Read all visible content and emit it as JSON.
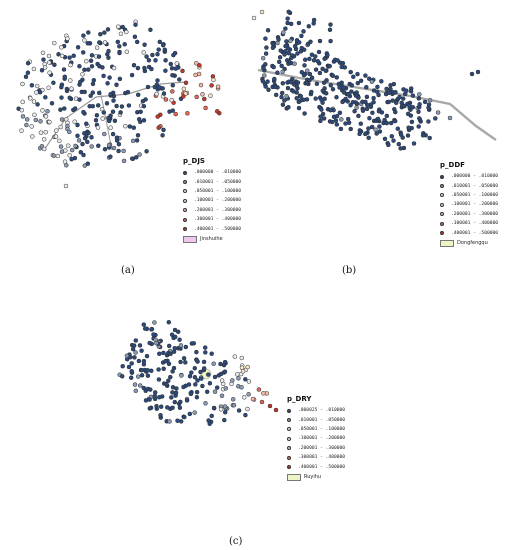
{
  "panels": [
    {
      "id": "a",
      "caption": "(a)",
      "legend_title": "p_DJS",
      "area_label": "Jinshuihe",
      "area_color": "#f0c8ec",
      "classes": [
        {
          "label": ".000000 - .010000",
          "color": "#2d4a7a"
        },
        {
          "label": ".010001 - .050000",
          "color": "#8a9bb3"
        },
        {
          "label": ".050001 - .100000",
          "color": "#e9ecef"
        },
        {
          "label": ".100001 - .200000",
          "color": "#f7e7c9"
        },
        {
          "label": ".200001 - .300000",
          "color": "#f4b8a3"
        },
        {
          "label": ".300001 - .400000",
          "color": "#e06a57"
        },
        {
          "label": ".400001 - .500000",
          "color": "#c0392b"
        }
      ]
    },
    {
      "id": "b",
      "caption": "(b)",
      "legend_title": "p_DDF",
      "area_label": "Dongfengqu",
      "area_color": "#eef3c8",
      "classes": [
        {
          "label": ".000000 - .010000",
          "color": "#2d4a7a"
        },
        {
          "label": ".010001 - .050000",
          "color": "#8a9bb3"
        },
        {
          "label": ".050001 - .100000",
          "color": "#e9ecef"
        },
        {
          "label": ".100001 - .200000",
          "color": "#f7e7c9"
        },
        {
          "label": ".200001 - .300000",
          "color": "#f4b8a3"
        },
        {
          "label": ".300001 - .400000",
          "color": "#e06a57"
        },
        {
          "label": ".400001 - .500000",
          "color": "#c0392b"
        }
      ]
    },
    {
      "id": "c",
      "caption": "(c)",
      "legend_title": "p_DRY",
      "area_label": "Ruyihu",
      "area_color": "#eef3c8",
      "classes": [
        {
          "label": ".000025 - .010000",
          "color": "#2d4a7a"
        },
        {
          "label": ".010001 - .050000",
          "color": "#8a9bb3"
        },
        {
          "label": ".050001 - .100000",
          "color": "#e9ecef"
        },
        {
          "label": ".100001 - .200000",
          "color": "#f7e7c9"
        },
        {
          "label": ".200001 - .300000",
          "color": "#f4b8a3"
        },
        {
          "label": ".300001 - .400000",
          "color": "#e06a57"
        },
        {
          "label": ".400001 - .500000",
          "color": "#c0392b"
        }
      ]
    }
  ]
}
